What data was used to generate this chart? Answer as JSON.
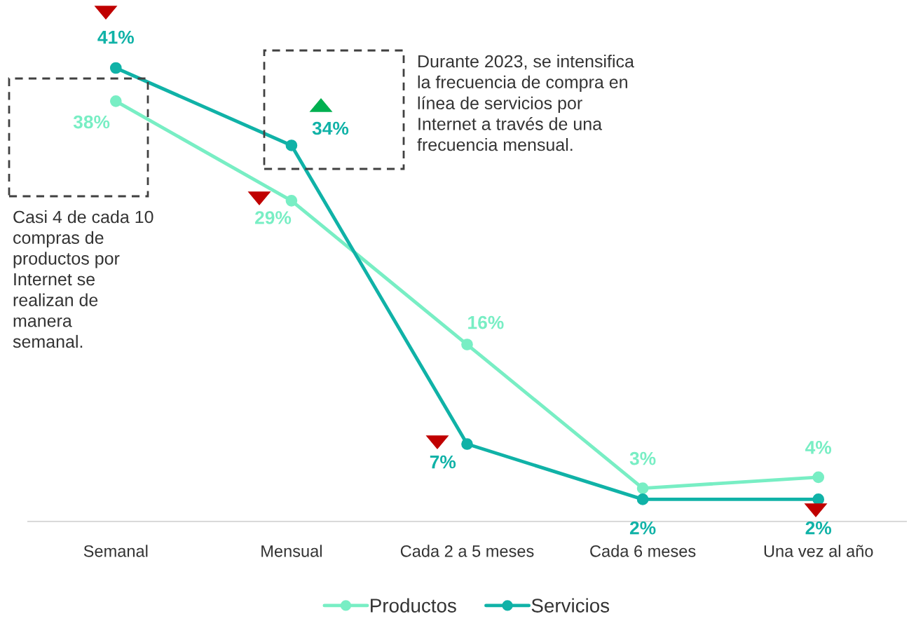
{
  "chart_data": {
    "type": "line",
    "categories": [
      "Semanal",
      "Mensual",
      "Cada 2 a 5 meses",
      "Cada 6 meses",
      "Una vez al año"
    ],
    "series": [
      {
        "name": "Productos",
        "color": "#78eec4",
        "values": [
          38,
          29,
          16,
          3,
          4
        ],
        "value_labels": [
          "38%",
          "29%",
          "16%",
          "3%",
          "4%"
        ]
      },
      {
        "name": "Servicios",
        "color": "#10b2a7",
        "values": [
          41,
          34,
          7,
          2,
          2
        ],
        "value_labels": [
          "41%",
          "34%",
          "7%",
          "2%",
          "2%"
        ]
      }
    ],
    "tick_labels": "x",
    "grid": false,
    "legend": "bottom",
    "marker": "circle",
    "line_style": "solid",
    "annotations": [
      "Casi 4 de cada 10\ncompras de\nproductos por\nInternet se\nrealizan de\nmanera\nsemanal.",
      "Durante 2023, se intensifica\nla frecuencia de compra en\nlínea de servicios por\nInternet a través de una\nfrecuencia mensual."
    ]
  }
}
